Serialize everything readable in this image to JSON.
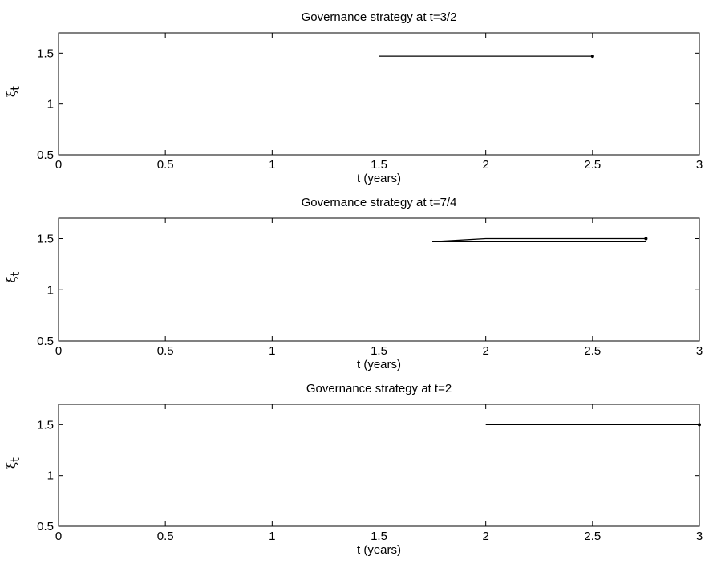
{
  "chart_data": [
    {
      "type": "line",
      "title": "Governance strategy at t=3/2",
      "xlabel": "t (years)",
      "ylabel": "ξ",
      "ylabel_subscript": "t",
      "xlim": [
        0,
        3
      ],
      "ylim": [
        0.5,
        1.7
      ],
      "xticks": [
        "0",
        "0.5",
        "1",
        "1.5",
        "2",
        "2.5",
        "3"
      ],
      "yticks": [
        "0.5",
        "1",
        "1.5"
      ],
      "grid": false,
      "series": [
        {
          "x": [
            1.5,
            2.5
          ],
          "y": [
            1.47,
            1.47
          ],
          "end_marker": true
        }
      ]
    },
    {
      "type": "line",
      "title": "Governance strategy at t=7/4",
      "xlabel": "t (years)",
      "ylabel": "ξ",
      "ylabel_subscript": "t",
      "xlim": [
        0,
        3
      ],
      "ylim": [
        0.5,
        1.7
      ],
      "xticks": [
        "0",
        "0.5",
        "1",
        "1.5",
        "2",
        "2.5",
        "3"
      ],
      "yticks": [
        "0.5",
        "1",
        "1.5"
      ],
      "grid": false,
      "series": [
        {
          "x": [
            1.75,
            2.0,
            2.75
          ],
          "y": [
            1.47,
            1.5,
            1.5
          ],
          "end_marker": true
        },
        {
          "x": [
            1.75,
            2.75
          ],
          "y": [
            1.47,
            1.47
          ],
          "end_marker": false
        }
      ]
    },
    {
      "type": "line",
      "title": "Governance strategy at t=2",
      "xlabel": "t (years)",
      "ylabel": "ξ",
      "ylabel_subscript": "t",
      "xlim": [
        0,
        3
      ],
      "ylim": [
        0.5,
        1.7
      ],
      "xticks": [
        "0",
        "0.5",
        "1",
        "1.5",
        "2",
        "2.5",
        "3"
      ],
      "yticks": [
        "0.5",
        "1",
        "1.5"
      ],
      "grid": false,
      "series": [
        {
          "x": [
            2.0,
            3.0
          ],
          "y": [
            1.5,
            1.5
          ],
          "end_marker": true
        }
      ]
    }
  ]
}
